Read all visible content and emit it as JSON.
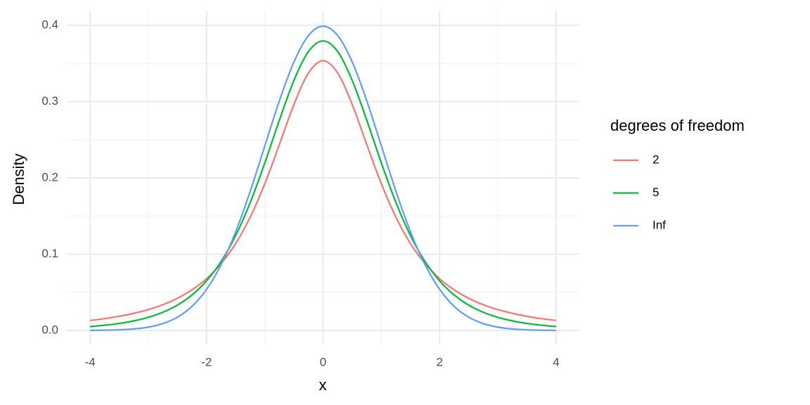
{
  "chart_data": {
    "type": "line",
    "x_label": "x",
    "y_label": "Density",
    "legend_title": "degrees of freedom",
    "x": [
      -4,
      -3.75,
      -3.5,
      -3.25,
      -3,
      -2.75,
      -2.5,
      -2.25,
      -2,
      -1.75,
      -1.5,
      -1.25,
      -1,
      -0.75,
      -0.5,
      -0.25,
      0,
      0.25,
      0.5,
      0.75,
      1,
      1.25,
      1.5,
      1.75,
      2,
      2.25,
      2.5,
      2.75,
      3,
      3.25,
      3.5,
      3.75,
      4
    ],
    "series": [
      {
        "name": "2",
        "color": "#F8766D",
        "values": [
          0.0131,
          0.0155,
          0.0186,
          0.0225,
          0.0274,
          0.0338,
          0.0422,
          0.0533,
          0.068,
          0.0878,
          0.1141,
          0.1487,
          0.1925,
          0.2438,
          0.2963,
          0.3376,
          0.3536,
          0.3376,
          0.2963,
          0.2438,
          0.1925,
          0.1487,
          0.1141,
          0.0878,
          0.068,
          0.0533,
          0.0422,
          0.0338,
          0.0274,
          0.0225,
          0.0186,
          0.0155,
          0.0131
        ]
      },
      {
        "name": "5",
        "color": "#00BA38",
        "values": [
          0.0051,
          0.0069,
          0.0092,
          0.0126,
          0.0173,
          0.0239,
          0.0333,
          0.0466,
          0.0651,
          0.0905,
          0.1245,
          0.1679,
          0.2197,
          0.2757,
          0.3279,
          0.3657,
          0.3796,
          0.3657,
          0.3279,
          0.2757,
          0.2197,
          0.1679,
          0.1245,
          0.0905,
          0.0651,
          0.0466,
          0.0333,
          0.0239,
          0.0173,
          0.0126,
          0.0092,
          0.0069,
          0.0051
        ]
      },
      {
        "name": "Inf",
        "color": "#619CFF",
        "values": [
          0.0001,
          0.0004,
          0.0009,
          0.002,
          0.0044,
          0.0091,
          0.0175,
          0.0317,
          0.054,
          0.0863,
          0.1295,
          0.1827,
          0.242,
          0.3011,
          0.3521,
          0.3867,
          0.3989,
          0.3867,
          0.3521,
          0.3011,
          0.242,
          0.1827,
          0.1295,
          0.0863,
          0.054,
          0.0317,
          0.0175,
          0.0091,
          0.0044,
          0.002,
          0.0009,
          0.0004,
          0.0001
        ]
      }
    ],
    "xlim": [
      -4.4,
      4.4
    ],
    "ylim": [
      -0.0184,
      0.4194
    ],
    "xticks": [
      -4,
      -2,
      0,
      2,
      4
    ],
    "yticks": [
      {
        "value": 0,
        "label": "0.0"
      },
      0.1,
      0.2,
      0.3,
      0.4
    ],
    "x_minor_ticks": [
      -3,
      -1,
      1,
      3
    ],
    "y_minor_ticks": [
      0.05,
      0.15,
      0.25,
      0.35
    ],
    "grid": true,
    "legend": "right"
  }
}
